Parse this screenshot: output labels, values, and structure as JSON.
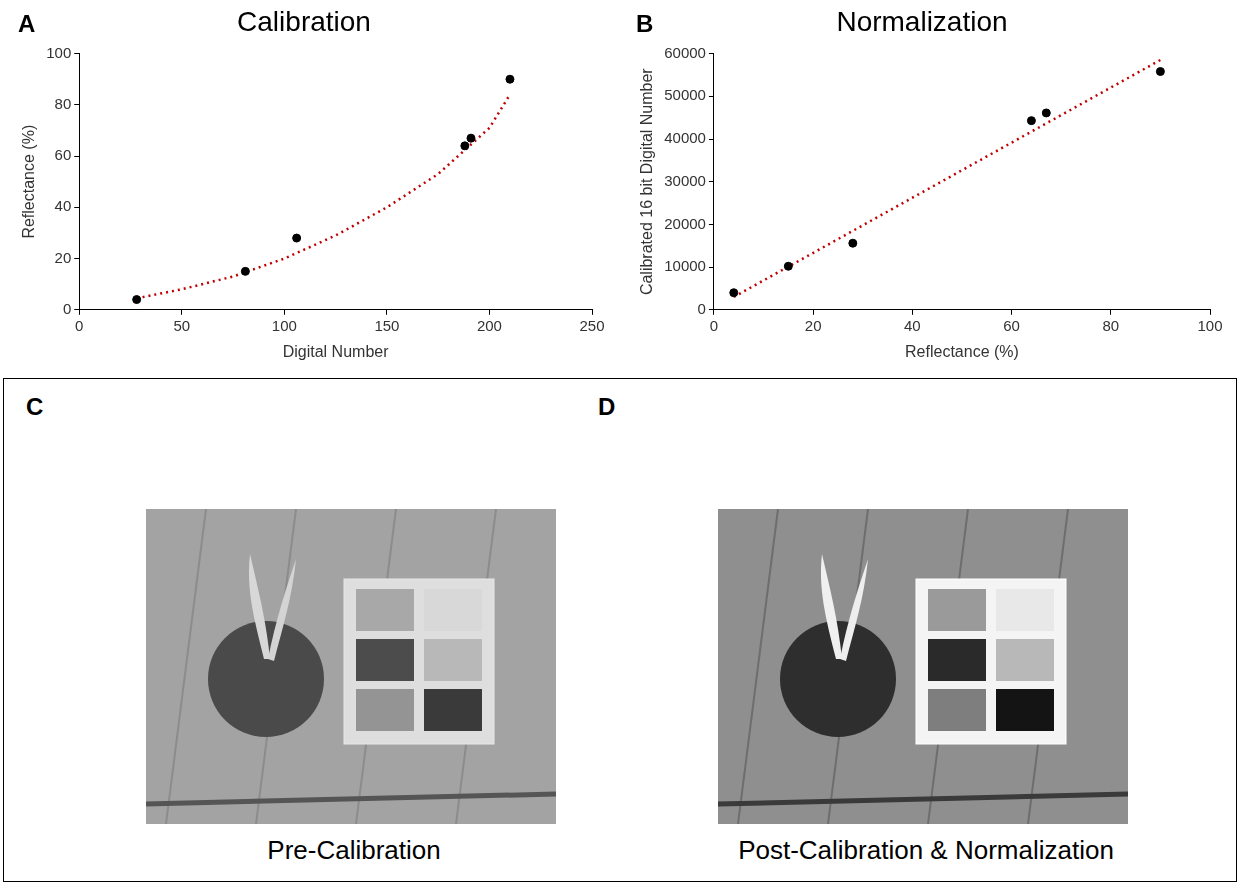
{
  "chart_data": [
    {
      "type": "scatter",
      "panel": "A",
      "title": "Calibration",
      "xlabel": "Digital Number",
      "ylabel": "Reflectance (%)",
      "xlim": [
        0,
        250
      ],
      "xticks": [
        0,
        50,
        100,
        150,
        200,
        250
      ],
      "ylim": [
        0,
        100
      ],
      "yticks": [
        0,
        20,
        40,
        60,
        80,
        100
      ],
      "grid": false,
      "series": [
        {
          "type": "scatter",
          "marker": "circle",
          "color": "#000000",
          "x": [
            28,
            81,
            106,
            188,
            191,
            210
          ],
          "values": [
            4,
            15,
            28,
            64,
            67,
            90
          ]
        },
        {
          "type": "line",
          "line_style": "dotted",
          "color": "#c00000",
          "x": [
            28,
            50,
            75,
            100,
            125,
            150,
            175,
            200,
            210
          ],
          "values": [
            4.5,
            8,
            13,
            20,
            29,
            40,
            53,
            71,
            84
          ]
        }
      ]
    },
    {
      "type": "scatter",
      "panel": "B",
      "title": "Normalization",
      "xlabel": "Reflectance (%)",
      "ylabel": "Calibrated 16 bit Digital Number",
      "xlim": [
        0,
        100
      ],
      "xticks": [
        0,
        20,
        40,
        60,
        80,
        100
      ],
      "ylim": [
        0,
        60000
      ],
      "yticks": [
        0,
        10000,
        20000,
        30000,
        40000,
        50000,
        60000
      ],
      "grid": false,
      "series": [
        {
          "type": "scatter",
          "marker": "circle",
          "color": "#000000",
          "x": [
            4,
            15,
            28,
            64,
            67,
            90
          ],
          "values": [
            4000,
            10200,
            15600,
            44300,
            46100,
            55800
          ]
        },
        {
          "type": "line",
          "line_style": "dotted",
          "color": "#c00000",
          "x": [
            4,
            90
          ],
          "values": [
            3000,
            58500
          ]
        }
      ]
    }
  ],
  "panels": [
    {
      "letter": "C",
      "caption": "Pre-Calibration"
    },
    {
      "letter": "D",
      "caption": "Post-Calibration & Normalization"
    }
  ]
}
